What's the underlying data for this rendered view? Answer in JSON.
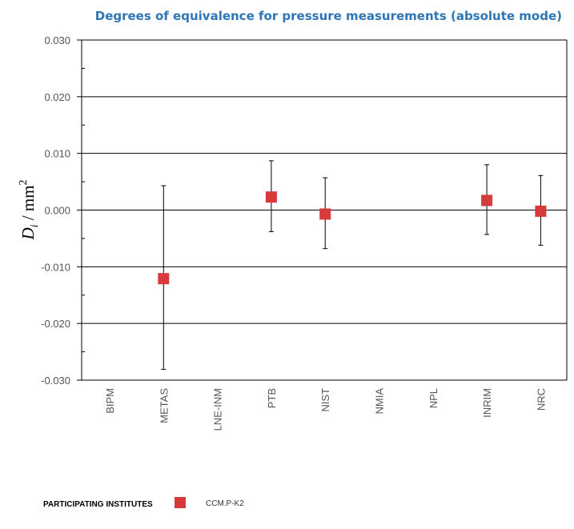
{
  "chart_data": {
    "type": "scatter",
    "title": "Degrees of equivalence for pressure measurements (absolute mode)",
    "ylabel": "D",
    "ylabel_sub": "i",
    "ylabel_unit": " / mm",
    "ylabel_sup": "2",
    "ylim": [
      -0.03,
      0.03
    ],
    "y_ticks": [
      "0.030",
      "0.020",
      "0.010",
      "0.000",
      "-0.010",
      "-0.020",
      "-0.030"
    ],
    "y_tick_values": [
      0.03,
      0.02,
      0.01,
      0.0,
      -0.01,
      -0.02,
      -0.03
    ],
    "grid": true,
    "categories": [
      "BIPM",
      "METAS",
      "LNE-INM",
      "PTB",
      "NIST",
      "NMIA",
      "NPL",
      "INRIM",
      "NRC"
    ],
    "series": [
      {
        "name": "CCM.P-K2",
        "color": "#d63a3a",
        "marker": "square",
        "values": [
          null,
          -0.0121,
          null,
          0.0023,
          -0.0007,
          null,
          null,
          0.0017,
          -0.0002
        ],
        "upper": [
          null,
          0.0043,
          null,
          0.0087,
          0.0057,
          null,
          null,
          0.008,
          0.0061
        ],
        "lower": [
          null,
          -0.0281,
          null,
          -0.0038,
          -0.0068,
          null,
          null,
          -0.0043,
          -0.0062
        ]
      }
    ],
    "legend": {
      "title": "PARTICIPATING INSTITUTES",
      "placement": "bottom-left"
    }
  }
}
